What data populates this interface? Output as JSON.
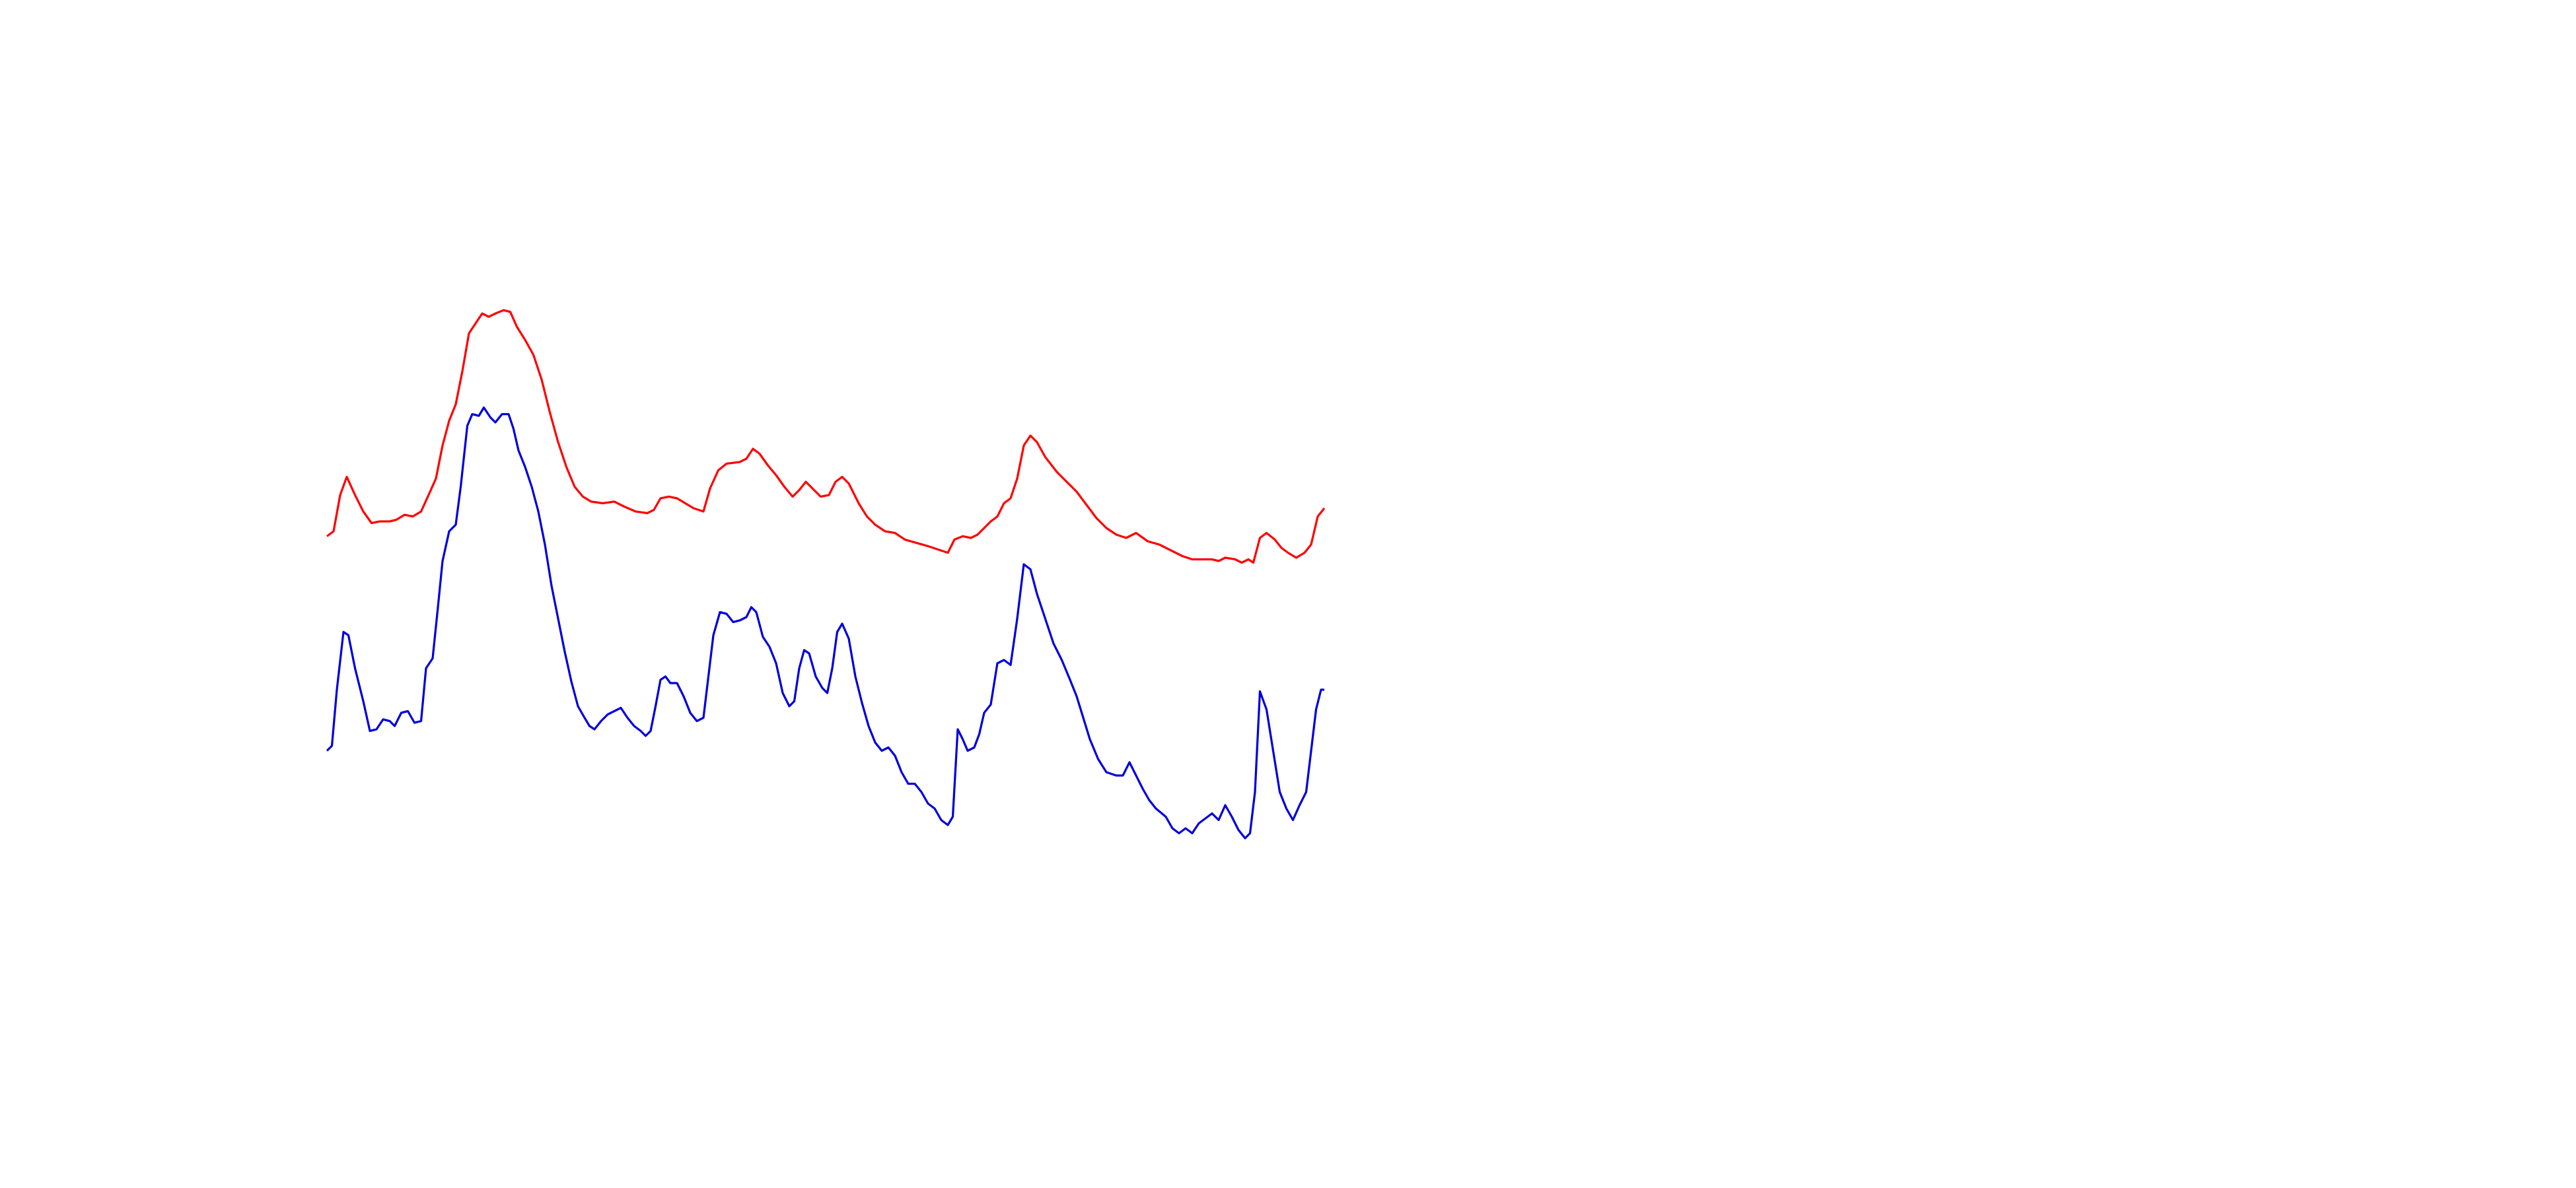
{
  "chart_data": {
    "type": "line",
    "xlim": [
      0,
      1560
    ],
    "ylim": [
      720,
      0
    ],
    "series": [
      {
        "color": "#ff0000",
        "x": [
          198,
          202,
          206,
          210,
          215,
          220,
          225,
          230,
          236,
          240,
          245,
          250,
          255,
          260,
          264,
          268,
          272,
          276,
          280,
          284,
          288,
          292,
          296,
          300,
          305,
          309,
          313,
          318,
          323,
          328,
          333,
          338,
          343,
          348,
          353,
          358,
          365,
          372,
          378,
          385,
          392,
          396,
          400,
          405,
          410,
          415,
          420,
          426,
          430,
          435,
          440,
          448,
          452,
          456,
          460,
          465,
          470,
          475,
          480,
          484,
          488,
          492,
          497,
          502,
          506,
          510,
          514,
          520,
          525,
          530,
          536,
          542,
          548,
          555,
          562,
          568,
          574,
          578,
          583,
          588,
          592,
          596,
          600,
          604,
          608,
          612,
          616,
          620,
          624,
          628,
          633,
          640,
          646,
          652,
          658,
          664,
          670,
          676,
          682,
          688,
          695,
          702,
          710,
          716,
          722,
          728,
          734,
          738,
          742,
          748,
          752,
          756,
          759,
          763,
          767,
          772,
          776,
          780,
          785,
          790,
          794,
          798,
          802
        ],
        "values": [
          325,
          322,
          300,
          289,
          300,
          310,
          317,
          316,
          316,
          315,
          312,
          313,
          310,
          299,
          290,
          270,
          255,
          245,
          225,
          202,
          196,
          190,
          192,
          190,
          188,
          189,
          198,
          206,
          215,
          230,
          250,
          268,
          283,
          295,
          301,
          304,
          305,
          304,
          307,
          310,
          311,
          309,
          302,
          301,
          302,
          305,
          308,
          310,
          296,
          285,
          281,
          280,
          278,
          272,
          275,
          282,
          288,
          295,
          301,
          297,
          292,
          296,
          301,
          300,
          292,
          289,
          293,
          305,
          313,
          318,
          322,
          323,
          327,
          329,
          331,
          333,
          335,
          327,
          325,
          326,
          324,
          320,
          316,
          313,
          305,
          302,
          290,
          270,
          264,
          268,
          277,
          286,
          292,
          298,
          306,
          314,
          320,
          324,
          326,
          323,
          328,
          330,
          334,
          337,
          339,
          339,
          339,
          340,
          338,
          339,
          341,
          339,
          341,
          326,
          323,
          327,
          332,
          335,
          338,
          335,
          330,
          313,
          308
        ]
      },
      {
        "color": "#0000dd",
        "x": [
          198,
          201,
          204,
          208,
          211,
          215,
          220,
          224,
          228,
          232,
          236,
          239,
          243,
          247,
          251,
          255,
          258,
          262,
          265,
          268,
          272,
          276,
          279,
          283,
          286,
          290,
          293,
          297,
          300,
          304,
          308,
          311,
          314,
          318,
          322,
          326,
          330,
          334,
          338,
          342,
          346,
          350,
          354,
          357,
          360,
          364,
          368,
          372,
          376,
          380,
          384,
          388,
          391,
          394,
          397,
          400,
          403,
          406,
          410,
          414,
          418,
          422,
          426,
          429,
          432,
          436,
          440,
          444,
          448,
          452,
          455,
          458,
          462,
          466,
          470,
          474,
          478,
          481,
          484,
          487,
          490,
          494,
          498,
          501,
          504,
          507,
          510,
          514,
          518,
          522,
          526,
          530,
          534,
          538,
          542,
          546,
          550,
          554,
          558,
          562,
          566,
          570,
          574,
          577,
          580,
          583,
          586,
          590,
          593,
          596,
          600,
          604,
          608,
          612,
          616,
          620,
          624,
          628,
          633,
          638,
          643,
          648,
          652,
          656,
          660,
          665,
          670,
          676,
          680,
          684,
          688,
          692,
          696,
          700,
          706,
          710,
          714,
          718,
          722,
          726,
          730,
          734,
          738,
          742,
          746,
          750,
          754,
          757,
          760,
          763,
          767,
          771,
          775,
          779,
          783,
          787,
          791,
          794,
          797,
          800,
          802
        ],
        "values": [
          455,
          452,
          418,
          383,
          385,
          405,
          425,
          443,
          442,
          436,
          437,
          440,
          432,
          431,
          438,
          437,
          405,
          399,
          370,
          340,
          322,
          318,
          295,
          258,
          251,
          252,
          247,
          253,
          256,
          251,
          251,
          260,
          273,
          283,
          295,
          310,
          330,
          355,
          375,
          395,
          413,
          428,
          435,
          440,
          442,
          437,
          433,
          431,
          429,
          435,
          440,
          443,
          446,
          443,
          428,
          412,
          410,
          414,
          414,
          422,
          432,
          437,
          435,
          410,
          385,
          371,
          372,
          377,
          376,
          374,
          368,
          371,
          386,
          392,
          402,
          420,
          428,
          425,
          405,
          394,
          396,
          410,
          417,
          420,
          405,
          383,
          378,
          387,
          410,
          426,
          440,
          450,
          455,
          453,
          458,
          468,
          475,
          475,
          480,
          487,
          490,
          497,
          500,
          495,
          442,
          448,
          455,
          453,
          445,
          432,
          427,
          402,
          400,
          403,
          375,
          342,
          345,
          360,
          375,
          390,
          400,
          412,
          422,
          435,
          448,
          460,
          468,
          470,
          470,
          462,
          470,
          478,
          485,
          490,
          495,
          502,
          505,
          502,
          505,
          499,
          496,
          493,
          497,
          488,
          495,
          503,
          508,
          505,
          480,
          419,
          430,
          455,
          480,
          490,
          497,
          488,
          480,
          455,
          430,
          418,
          418
        ]
      }
    ]
  }
}
